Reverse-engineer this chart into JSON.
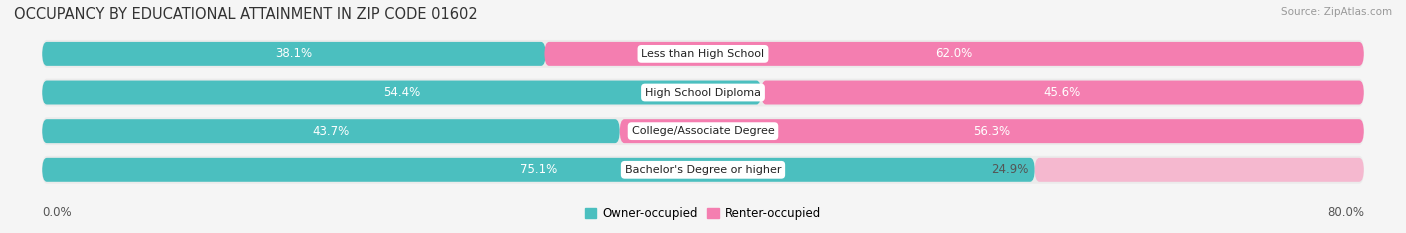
{
  "title": "OCCUPANCY BY EDUCATIONAL ATTAINMENT IN ZIP CODE 01602",
  "source": "Source: ZipAtlas.com",
  "categories": [
    "Less than High School",
    "High School Diploma",
    "College/Associate Degree",
    "Bachelor's Degree or higher"
  ],
  "owner_values": [
    38.1,
    54.4,
    43.7,
    75.1
  ],
  "renter_values": [
    62.0,
    45.6,
    56.3,
    24.9
  ],
  "owner_color": "#4BBFBF",
  "renter_color_strong": "#F47EB0",
  "renter_color_light": "#F5B8CF",
  "row_bg_color": "#EBEBEB",
  "background_color": "#F5F5F5",
  "axis_label_left": "0.0%",
  "axis_label_right": "80.0%",
  "title_fontsize": 10.5,
  "source_fontsize": 7.5,
  "bar_label_fontsize": 8.5,
  "cat_label_fontsize": 8.0,
  "legend_fontsize": 8.5,
  "strong_renter_threshold": 30
}
